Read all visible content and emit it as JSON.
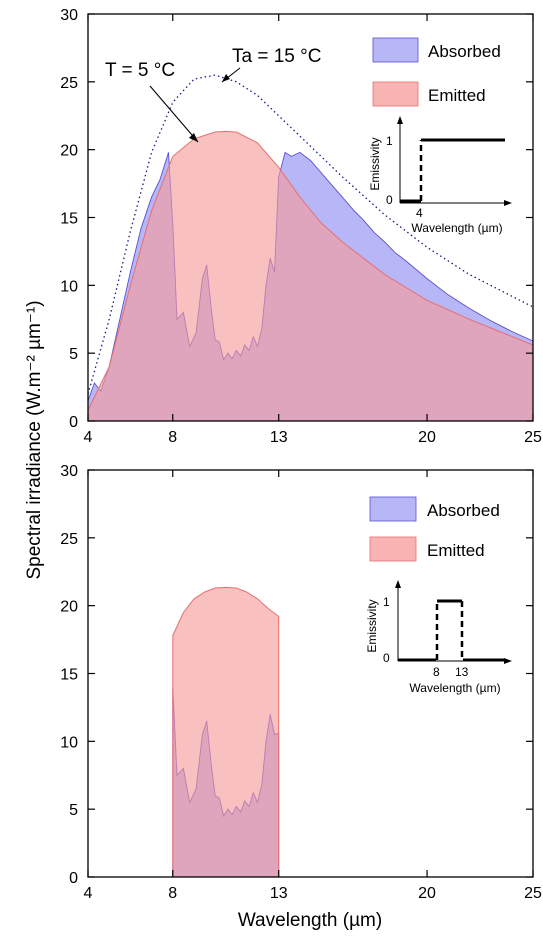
{
  "figure": {
    "ylabel": "Spectral irradiance (W.m⁻² µm⁻¹)",
    "xlabel": "Wavelength (µm)"
  },
  "colors": {
    "absorbed": "#7b7bf0",
    "emitted": "#f59a9a",
    "blackbody": "#1a1a8c",
    "emitted_edge": "#e86f6f",
    "absorbed_edge": "#5a4fd6"
  },
  "chart_data": [
    {
      "type": "area",
      "panel": "top",
      "xlim": [
        4,
        25
      ],
      "ylim": [
        0,
        30
      ],
      "x_ticks": [
        4,
        8,
        13,
        20,
        25
      ],
      "y_ticks": [
        0,
        5,
        10,
        15,
        20,
        25,
        30
      ],
      "legend": {
        "placement": "top-right",
        "entries": [
          "Absorbed",
          "Emitted"
        ]
      },
      "annotations": {
        "emitter_temp": "T = 5 °C",
        "ambient_temp": "Ta = 15 °C"
      },
      "series": [
        {
          "name": "Absorbed",
          "x": [
            4,
            4.3,
            4.6,
            5,
            5.5,
            6,
            6.5,
            7,
            7.4,
            7.8,
            8.0,
            8.2,
            8.5,
            8.8,
            9.1,
            9.4,
            9.6,
            9.8,
            10.0,
            10.2,
            10.4,
            10.6,
            10.8,
            11.0,
            11.2,
            11.4,
            11.6,
            11.8,
            12.0,
            12.2,
            12.4,
            12.6,
            12.8,
            13.0,
            13.3,
            13.6,
            14,
            14.5,
            15,
            15.5,
            16,
            16.5,
            17,
            17.5,
            18,
            18.5,
            19,
            20,
            21,
            22,
            23,
            24,
            25
          ],
          "y": [
            1.5,
            2.8,
            2.2,
            4,
            7.5,
            11,
            14.2,
            16.5,
            17.8,
            19.8,
            14.5,
            7.5,
            8,
            5.5,
            6.5,
            10.5,
            11.5,
            8.5,
            6,
            5.8,
            4.5,
            5,
            4.6,
            5.2,
            4.8,
            5.6,
            5.2,
            6.2,
            5.5,
            6.8,
            10,
            12,
            11,
            18,
            19.8,
            19.5,
            19.8,
            19.2,
            18.3,
            17.4,
            16.5,
            15.6,
            14.8,
            13.9,
            13.2,
            12.4,
            11.8,
            10.5,
            9.3,
            8.3,
            7.4,
            6.6,
            5.9
          ]
        },
        {
          "name": "Emitted",
          "x": [
            4,
            5,
            6,
            7,
            7.5,
            8,
            9,
            10,
            10.5,
            11,
            12,
            13,
            14,
            15,
            16,
            18,
            20,
            22,
            25
          ],
          "y": [
            0.8,
            4,
            10,
            15.5,
            17.5,
            19.5,
            20.8,
            21.3,
            21.35,
            21.3,
            20.5,
            18.7,
            16.5,
            14.6,
            13.2,
            10.8,
            8.9,
            7.5,
            5.6
          ]
        },
        {
          "name": "Blackbody",
          "x": [
            4,
            5,
            6,
            7,
            8,
            9,
            10,
            11,
            12,
            13,
            14,
            15,
            16,
            18,
            20,
            22,
            25
          ],
          "y": [
            2,
            7.5,
            14,
            19.8,
            23.5,
            25.2,
            25.5,
            25.0,
            24.0,
            22.5,
            21.0,
            19.5,
            18.0,
            15.2,
            12.8,
            10.8,
            8.4
          ]
        }
      ],
      "inset": {
        "xlabel": "Wavelength (µm)",
        "ylabel": "Emissivity",
        "x_ticks": [
          "4"
        ],
        "y_ticks": [
          "0",
          "1"
        ]
      }
    },
    {
      "type": "area",
      "panel": "bottom",
      "xlim": [
        4,
        25
      ],
      "ylim": [
        0,
        30
      ],
      "x_ticks": [
        4,
        8,
        13,
        20,
        25
      ],
      "y_ticks": [
        0,
        5,
        10,
        15,
        20,
        25,
        30
      ],
      "legend": {
        "placement": "top-right",
        "entries": [
          "Absorbed",
          "Emitted"
        ]
      },
      "series": [
        {
          "name": "Absorbed",
          "x": [
            8.0,
            8.2,
            8.5,
            8.8,
            9.1,
            9.4,
            9.6,
            9.8,
            10.0,
            10.2,
            10.4,
            10.6,
            10.8,
            11.0,
            11.2,
            11.4,
            11.6,
            11.8,
            12.0,
            12.2,
            12.4,
            12.6,
            12.8,
            13.0
          ],
          "y": [
            14,
            7.5,
            8,
            5.5,
            6.5,
            10.5,
            11.5,
            8.5,
            6,
            5.8,
            4.5,
            5,
            4.6,
            5.2,
            4.8,
            5.6,
            5.2,
            6.2,
            5.5,
            6.8,
            10,
            12,
            10.5,
            10.6
          ]
        },
        {
          "name": "Emitted",
          "x": [
            8,
            8.5,
            9,
            9.5,
            10,
            10.5,
            11,
            11.5,
            12,
            12.5,
            13
          ],
          "y": [
            17.8,
            19.5,
            20.5,
            21.0,
            21.3,
            21.35,
            21.3,
            21.0,
            20.5,
            19.8,
            19.2
          ]
        }
      ],
      "inset": {
        "xlabel": "Wavelength (µm)",
        "ylabel": "Emissivity",
        "x_ticks": [
          "8",
          "13"
        ],
        "y_ticks": [
          "0",
          "1"
        ]
      }
    }
  ]
}
